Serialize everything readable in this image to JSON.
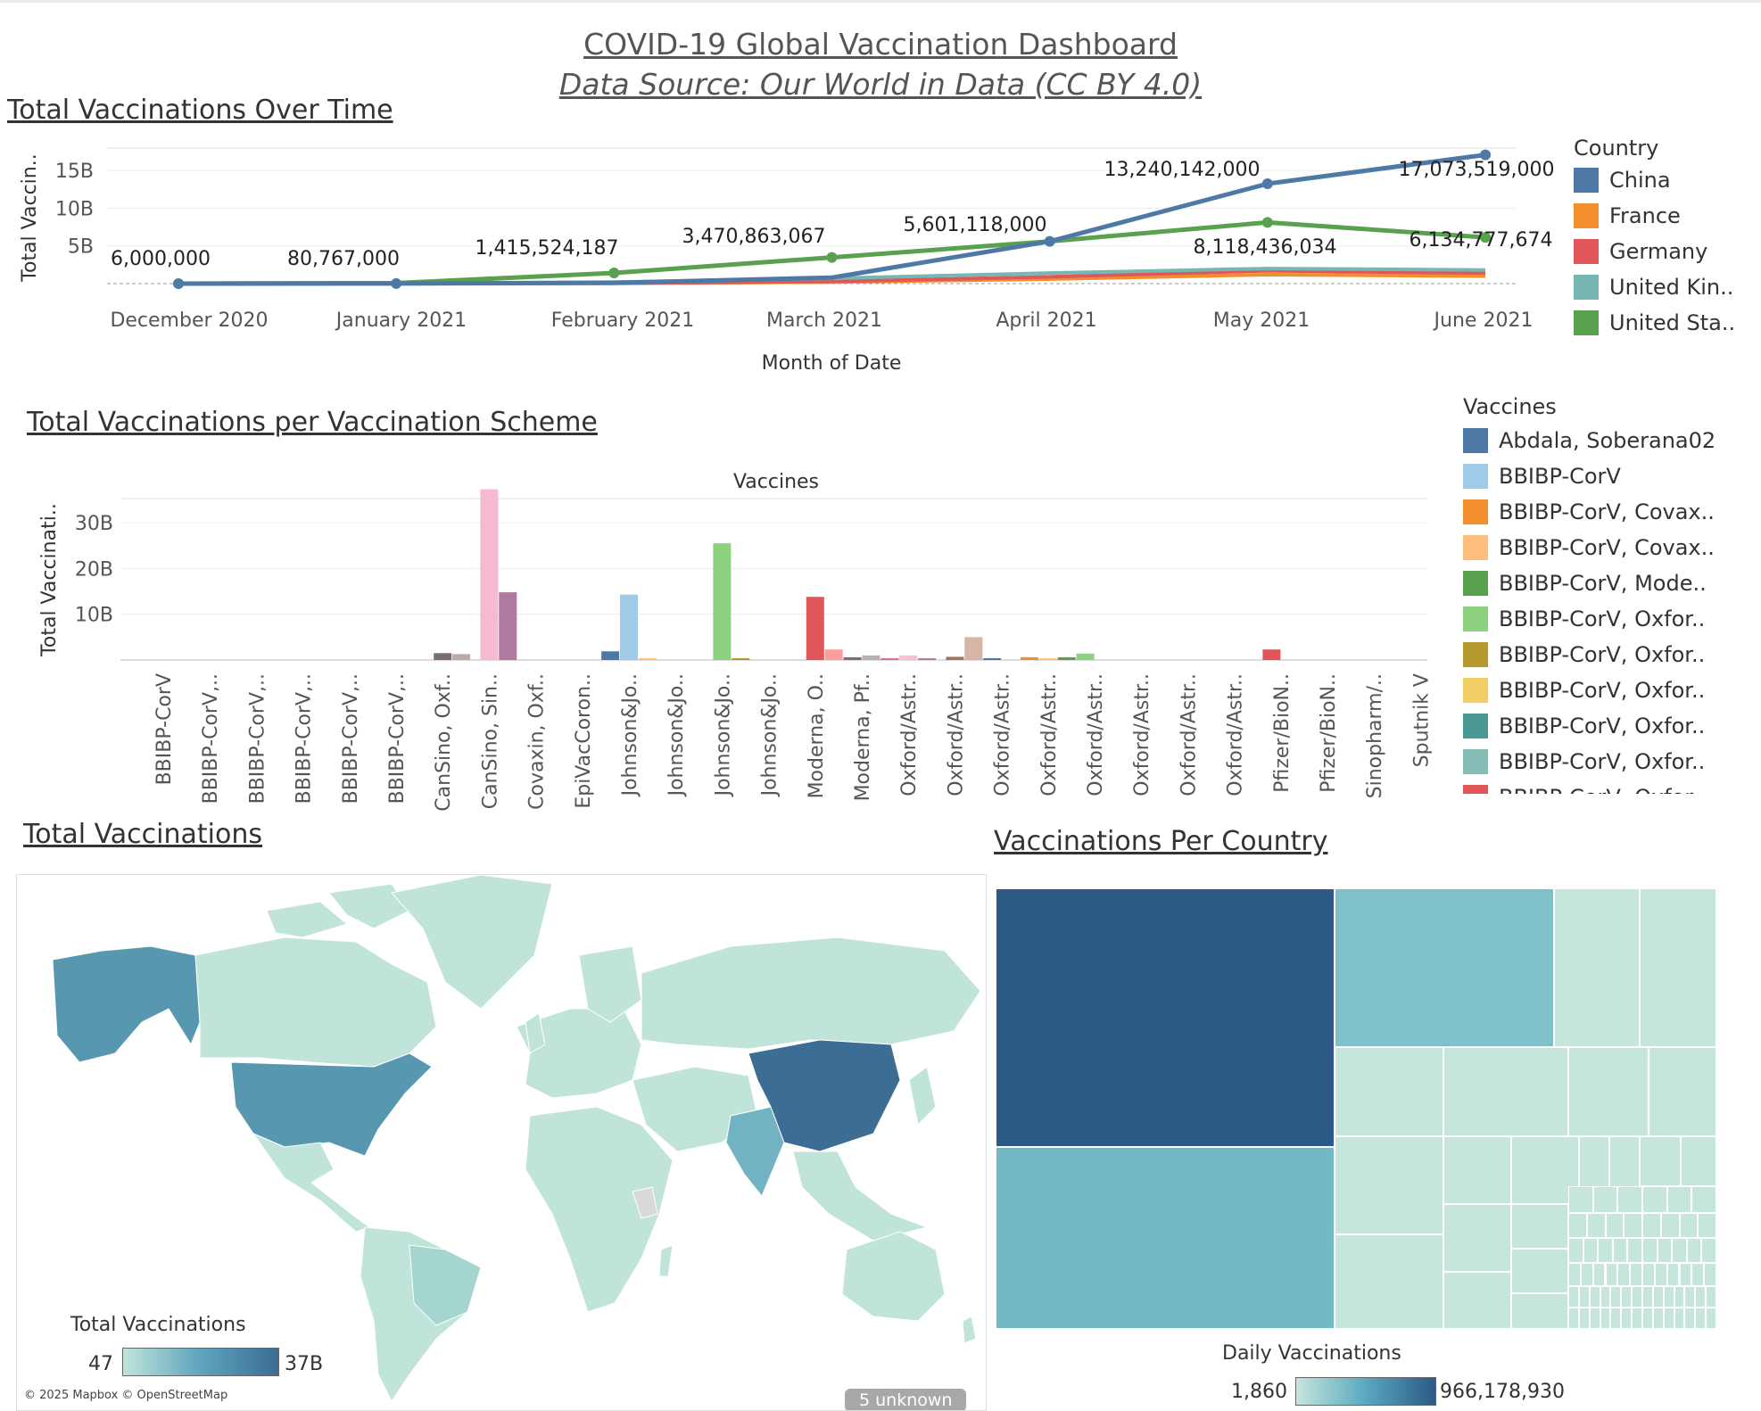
{
  "dashboard": {
    "title": "COVID-19 Global Vaccination Dashboard",
    "subtitle": "Data Source: Our World in Data (CC BY 4.0)"
  },
  "sections": {
    "over_time": "Total Vaccinations Over Time",
    "per_scheme": "Total Vaccinations per Vaccination Scheme",
    "map": "Total Vaccinations",
    "per_country": "Vaccinations Per Country"
  },
  "chart_data": [
    {
      "type": "line",
      "title": "Total Vaccinations Over Time",
      "xlabel": "Month of Date",
      "ylabel": "Total Vaccin..",
      "x": [
        "December 2020",
        "January 2021",
        "February 2021",
        "March 2021",
        "April 2021",
        "May 2021",
        "June 2021"
      ],
      "yticks": [
        "5B",
        "10B",
        "15B"
      ],
      "ylim": [
        0,
        17500000000
      ],
      "legend_title": "Country",
      "legend_position": "right",
      "series": [
        {
          "name": "China",
          "color": "#4e79a7",
          "values": [
            0,
            20000000,
            100000000,
            800000000,
            5601118000,
            13240142000,
            17073519000
          ],
          "labels": [
            null,
            null,
            null,
            null,
            null,
            "13,240,142,000",
            "17,073,519,000"
          ]
        },
        {
          "name": "France",
          "color": "#f28e2b",
          "values": [
            0,
            1000000,
            30000000,
            200000000,
            600000000,
            1200000000,
            1000000000
          ]
        },
        {
          "name": "Germany",
          "color": "#e15759",
          "values": [
            0,
            3000000,
            60000000,
            300000000,
            900000000,
            1700000000,
            1400000000
          ]
        },
        {
          "name": "United Kin..",
          "color": "#76b7b2",
          "values": [
            0,
            25000000,
            200000000,
            700000000,
            1400000000,
            2000000000,
            1800000000
          ]
        },
        {
          "name": "United Sta..",
          "color": "#59a14f",
          "values": [
            6000000,
            80767000,
            1415524187,
            3470863067,
            5601118000,
            8118436034,
            6134777674
          ],
          "labels": [
            "6,000,000",
            "80,767,000",
            "1,415,524,187",
            "3,470,863,067",
            "5,601,118,000",
            "8,118,436,034",
            "6,134,777,674"
          ]
        }
      ]
    },
    {
      "type": "bar",
      "title": "Total Vaccinations per Vaccination Scheme",
      "column_header": "Vaccines",
      "ylabel": "Total Vaccinati..",
      "yticks": [
        "10B",
        "20B",
        "30B"
      ],
      "ylim": [
        0,
        38000000000
      ],
      "categories": [
        "BBIBP-CorV",
        "BBIBP-CorV,..",
        "BBIBP-CorV,..",
        "BBIBP-CorV,..",
        "BBIBP-CorV,..",
        "BBIBP-CorV,..",
        "CanSino, Oxf..",
        "CanSino, Sin..",
        "Covaxin, Oxf..",
        "EpiVacCoron..",
        "Johnson&Jo..",
        "Johnson&Jo..",
        "Johnson&Jo..",
        "Johnson&Jo..",
        "Moderna, O..",
        "Moderna, Pf..",
        "Oxford/Astr..",
        "Oxford/Astr..",
        "Oxford/Astr..",
        "Oxford/Astr..",
        "Oxford/Astr..",
        "Oxford/Astr..",
        "Oxford/Astr..",
        "Oxford/Astr..",
        "Pfizer/BioN..",
        "Pfizer/BioN..",
        "Sinopharm/..",
        "Sputnik V"
      ],
      "bars": [
        {
          "slot": 6.0,
          "value": 1500000000,
          "color": "#7b6d6a"
        },
        {
          "slot": 6.4,
          "value": 1300000000,
          "color": "#b9aca8"
        },
        {
          "slot": 7.0,
          "value": 37300000000,
          "color": "#f5b9d2"
        },
        {
          "slot": 7.4,
          "value": 14800000000,
          "color": "#af7aa1"
        },
        {
          "slot": 9.6,
          "value": 1900000000,
          "color": "#4e79a7"
        },
        {
          "slot": 10.0,
          "value": 14300000000,
          "color": "#a0cbe8"
        },
        {
          "slot": 10.4,
          "value": 300000000,
          "color": "#ffbe7d"
        },
        {
          "slot": 12.0,
          "value": 25500000000,
          "color": "#8cd17d"
        },
        {
          "slot": 12.4,
          "value": 300000000,
          "color": "#b6992d"
        },
        {
          "slot": 14.0,
          "value": 13800000000,
          "color": "#e15759"
        },
        {
          "slot": 14.4,
          "value": 2300000000,
          "color": "#ff9d9a"
        },
        {
          "slot": 14.8,
          "value": 600000000,
          "color": "#79706e"
        },
        {
          "slot": 15.2,
          "value": 1000000000,
          "color": "#bab0ac"
        },
        {
          "slot": 15.6,
          "value": 400000000,
          "color": "#d37295"
        },
        {
          "slot": 16.0,
          "value": 1000000000,
          "color": "#fabfd2"
        },
        {
          "slot": 16.4,
          "value": 300000000,
          "color": "#b07aa1"
        },
        {
          "slot": 17.0,
          "value": 700000000,
          "color": "#9d7660"
        },
        {
          "slot": 17.4,
          "value": 5000000000,
          "color": "#d7b5a6"
        },
        {
          "slot": 17.8,
          "value": 300000000,
          "color": "#4e79a7"
        },
        {
          "slot": 18.6,
          "value": 600000000,
          "color": "#f28e2b"
        },
        {
          "slot": 19.0,
          "value": 200000000,
          "color": "#ffbe7d"
        },
        {
          "slot": 19.4,
          "value": 600000000,
          "color": "#59a14f"
        },
        {
          "slot": 19.8,
          "value": 1400000000,
          "color": "#8cd17d"
        },
        {
          "slot": 23.8,
          "value": 2300000000,
          "color": "#e15759"
        }
      ],
      "legend_title": "Vaccines",
      "legend_position": "right",
      "legend": [
        {
          "name": "Abdala, Soberana02",
          "color": "#4e79a7"
        },
        {
          "name": "BBIBP-CorV",
          "color": "#a0cbe8"
        },
        {
          "name": "BBIBP-CorV, Covax..",
          "color": "#f28e2b"
        },
        {
          "name": "BBIBP-CorV, Covax..",
          "color": "#ffbe7d"
        },
        {
          "name": "BBIBP-CorV, Mode..",
          "color": "#59a14f"
        },
        {
          "name": "BBIBP-CorV, Oxfor..",
          "color": "#8cd17d"
        },
        {
          "name": "BBIBP-CorV, Oxfor..",
          "color": "#b6992d"
        },
        {
          "name": "BBIBP-CorV, Oxfor..",
          "color": "#f1ce63"
        },
        {
          "name": "BBIBP-CorV, Oxfor..",
          "color": "#499894"
        },
        {
          "name": "BBIBP-CorV, Oxfor..",
          "color": "#86bcb6"
        },
        {
          "name": "BBIBP-CorV, Oxfor..",
          "color": "#e15759"
        }
      ]
    },
    {
      "type": "heatmap",
      "title": "Vaccinations Per Country",
      "legend_title": "Daily Vaccinations",
      "legend_min": "1,860",
      "legend_max": "966,178,930",
      "color_low": "#c6e6dc",
      "color_high": "#2c5985"
    }
  ],
  "map": {
    "legend_title": "Total Vaccinations",
    "legend_min": "47",
    "legend_max": "37B",
    "attribution": "© 2025 Mapbox © OpenStreetMap",
    "unknown_label": "5 unknown",
    "land_color": "#c0e4da",
    "china_color": "#3c6d94",
    "usa_color": "#5797b0",
    "india_color": "#71b3c3"
  }
}
